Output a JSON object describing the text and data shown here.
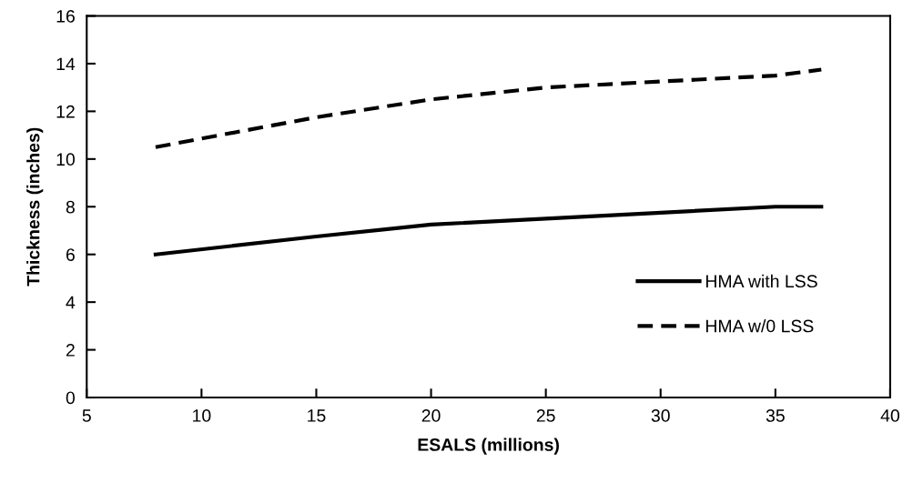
{
  "chart_data": {
    "type": "line",
    "xlabel": "ESALS (millions)",
    "ylabel": "Thickness (inches)",
    "x": [
      8,
      15,
      20,
      25,
      30,
      35,
      37
    ],
    "series": [
      {
        "name": "HMA with LSS",
        "color": "#000000",
        "line_style": "solid",
        "values": [
          6,
          6.75,
          7.25,
          7.5,
          7.75,
          8,
          8
        ]
      },
      {
        "name": "HMA w/0 LSS",
        "color": "#000000",
        "line_style": "dashed",
        "values": [
          10.5,
          11.75,
          12.5,
          13,
          13.25,
          13.5,
          13.75
        ]
      }
    ],
    "xlim": [
      5,
      40
    ],
    "xticks": [
      5,
      10,
      15,
      20,
      25,
      30,
      35,
      40
    ],
    "ylim": [
      0,
      16
    ],
    "yticks": [
      0,
      2,
      4,
      6,
      8,
      10,
      12,
      14,
      16
    ],
    "grid": false,
    "legend": "bottom right",
    "marker": "none"
  }
}
